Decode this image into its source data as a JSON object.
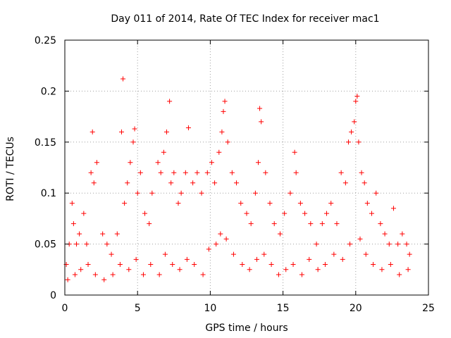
{
  "chart_data": {
    "type": "scatter",
    "title": "Day 011 of 2014, Rate Of TEC Index for receiver mac1",
    "xlabel": "GPS time / hours",
    "ylabel": "ROTI / TECUs",
    "xlim": [
      0,
      25
    ],
    "ylim": [
      0,
      0.25
    ],
    "x_ticks": [
      0,
      5,
      10,
      15,
      20,
      25
    ],
    "x_tick_labels": [
      "0",
      "5",
      "10",
      "15",
      "20",
      "25"
    ],
    "y_ticks": [
      0,
      0.05,
      0.1,
      0.15,
      0.2,
      0.25
    ],
    "y_tick_labels": [
      "0",
      "0.05",
      "0.1",
      "0.15",
      "0.2",
      "0.25"
    ],
    "grid": true,
    "marker": "+",
    "marker_color": "#ff0000",
    "series": [
      {
        "name": "ROTI",
        "color": "#ff0000",
        "x": [
          0.1,
          0.3,
          0.5,
          0.6,
          0.8,
          1.0,
          1.3,
          1.5,
          1.8,
          1.9,
          2.0,
          2.2,
          2.6,
          2.9,
          3.2,
          3.6,
          3.9,
          4.0,
          4.1,
          4.3,
          4.5,
          4.7,
          4.8,
          5.0,
          5.2,
          5.5,
          5.8,
          6.0,
          6.4,
          6.6,
          6.8,
          7.0,
          7.2,
          7.3,
          7.5,
          7.8,
          8.0,
          8.3,
          8.5,
          8.8,
          9.1,
          9.4,
          9.8,
          10.1,
          10.3,
          10.6,
          10.8,
          10.9,
          11.0,
          11.2,
          11.5,
          11.8,
          12.1,
          12.5,
          12.8,
          13.1,
          13.3,
          13.4,
          13.5,
          13.8,
          14.1,
          14.4,
          14.8,
          15.1,
          15.5,
          15.8,
          15.9,
          16.2,
          16.5,
          16.9,
          17.3,
          17.7,
          18.0,
          18.3,
          18.7,
          19.0,
          19.3,
          19.5,
          19.7,
          19.9,
          20.0,
          20.1,
          20.2,
          20.4,
          20.6,
          20.8,
          21.1,
          21.4,
          21.7,
          22.0,
          22.3,
          22.6,
          22.9,
          23.2,
          23.5,
          23.7,
          0.2,
          0.7,
          1.1,
          1.6,
          2.1,
          2.7,
          3.3,
          3.8,
          4.4,
          4.9,
          5.4,
          5.9,
          6.5,
          6.9,
          7.4,
          7.9,
          8.4,
          8.9,
          9.5,
          9.9,
          10.4,
          10.7,
          11.1,
          11.6,
          12.2,
          12.7,
          13.2,
          13.7,
          14.2,
          14.7,
          15.2,
          15.7,
          16.3,
          16.8,
          17.4,
          17.9,
          18.5,
          19.1,
          19.6,
          20.3,
          20.7,
          21.2,
          21.8,
          22.4,
          23.0,
          23.6
        ],
        "y": [
          0.03,
          0.05,
          0.09,
          0.07,
          0.05,
          0.06,
          0.08,
          0.05,
          0.12,
          0.16,
          0.11,
          0.13,
          0.06,
          0.05,
          0.04,
          0.06,
          0.16,
          0.212,
          0.09,
          0.11,
          0.13,
          0.15,
          0.163,
          0.1,
          0.12,
          0.08,
          0.07,
          0.1,
          0.13,
          0.12,
          0.14,
          0.16,
          0.19,
          0.11,
          0.12,
          0.09,
          0.1,
          0.12,
          0.164,
          0.11,
          0.12,
          0.1,
          0.12,
          0.13,
          0.11,
          0.14,
          0.16,
          0.18,
          0.19,
          0.15,
          0.12,
          0.11,
          0.09,
          0.08,
          0.07,
          0.1,
          0.13,
          0.183,
          0.17,
          0.12,
          0.09,
          0.07,
          0.06,
          0.08,
          0.1,
          0.14,
          0.12,
          0.09,
          0.08,
          0.07,
          0.05,
          0.07,
          0.08,
          0.09,
          0.07,
          0.12,
          0.11,
          0.15,
          0.16,
          0.17,
          0.19,
          0.195,
          0.15,
          0.12,
          0.11,
          0.09,
          0.08,
          0.1,
          0.07,
          0.06,
          0.05,
          0.085,
          0.05,
          0.06,
          0.05,
          0.04,
          0.015,
          0.02,
          0.025,
          0.03,
          0.02,
          0.015,
          0.02,
          0.03,
          0.025,
          0.035,
          0.02,
          0.03,
          0.02,
          0.04,
          0.03,
          0.025,
          0.035,
          0.03,
          0.02,
          0.045,
          0.05,
          0.06,
          0.055,
          0.04,
          0.03,
          0.025,
          0.035,
          0.04,
          0.03,
          0.02,
          0.025,
          0.03,
          0.02,
          0.035,
          0.025,
          0.03,
          0.04,
          0.035,
          0.05,
          0.055,
          0.04,
          0.03,
          0.025,
          0.03,
          0.02,
          0.025
        ]
      }
    ]
  }
}
